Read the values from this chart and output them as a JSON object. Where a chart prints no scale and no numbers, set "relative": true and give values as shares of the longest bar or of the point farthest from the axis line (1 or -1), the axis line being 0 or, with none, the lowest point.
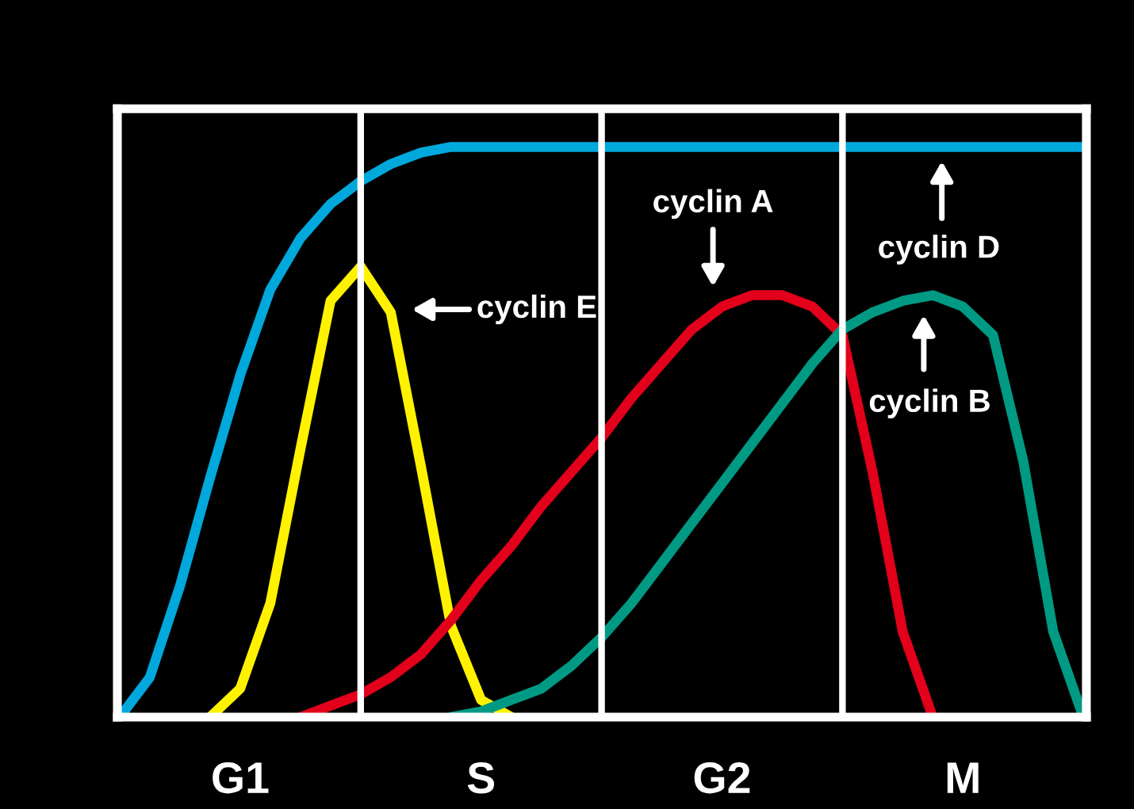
{
  "chart_data": {
    "type": "line",
    "relative": true,
    "legend": false,
    "grid": "x",
    "categories": [
      null,
      null,
      null,
      null,
      "G1",
      null,
      null,
      null,
      null,
      null,
      null,
      null,
      "S",
      null,
      null,
      null,
      null,
      null,
      null,
      null,
      "G2",
      null,
      null,
      null,
      null,
      null,
      null,
      null,
      "M",
      null,
      null,
      null,
      null
    ],
    "annotations": [
      "cyclin D",
      "cyclin E",
      "cyclin A",
      "cyclin B"
    ],
    "series": [
      {
        "color": "#00a8dc",
        "values": [
          0,
          0.07,
          0.23,
          0.42,
          0.6,
          0.75,
          0.84,
          0.9,
          0.94,
          0.97,
          0.99,
          1,
          1,
          1,
          1,
          1,
          1,
          1,
          1,
          1,
          1,
          1,
          1,
          1,
          1,
          1,
          1,
          1,
          1,
          1,
          1,
          1,
          1
        ]
      },
      {
        "color": "#fff200",
        "values": [
          null,
          null,
          null,
          0,
          0.05,
          0.2,
          0.47,
          0.73,
          0.79,
          0.71,
          0.44,
          0.16,
          0.03,
          0,
          null,
          null,
          null,
          null,
          null,
          null,
          null,
          null,
          null,
          null,
          null,
          null,
          null,
          null,
          null,
          null,
          null,
          null,
          null
        ]
      },
      {
        "color": "#e2001a",
        "values": [
          null,
          null,
          null,
          null,
          null,
          null,
          0,
          0.02,
          0.04,
          0.07,
          0.11,
          0.17,
          0.24,
          0.3,
          0.37,
          0.43,
          0.49,
          0.56,
          0.62,
          0.68,
          0.72,
          0.74,
          0.74,
          0.72,
          0.67,
          0.43,
          0.15,
          0,
          null,
          null,
          null,
          null,
          null
        ]
      },
      {
        "color": "#009a84",
        "values": [
          null,
          null,
          null,
          null,
          null,
          null,
          null,
          null,
          null,
          null,
          null,
          0,
          0.01,
          0.03,
          0.05,
          0.09,
          0.14,
          0.2,
          0.27,
          0.34,
          0.41,
          0.48,
          0.55,
          0.62,
          0.68,
          0.71,
          0.73,
          0.74,
          0.72,
          0.67,
          0.45,
          0.15,
          0
        ]
      }
    ]
  }
}
